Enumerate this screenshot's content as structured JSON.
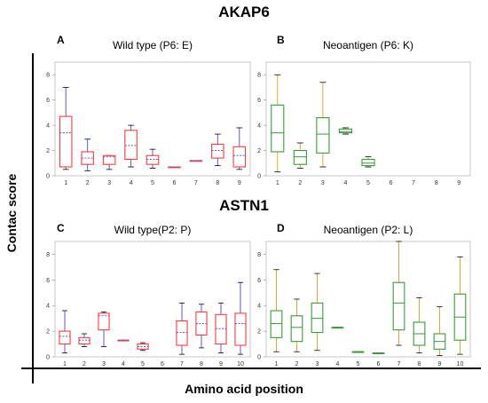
{
  "figure": {
    "section_top_title": "AKAP6",
    "section_bottom_title": "ASTN1",
    "y_axis_title": "Contac score",
    "x_axis_title": "Amino acid position"
  },
  "colors": {
    "wild_box": "#ff3b3b",
    "wild_whisker": "#5b5bd6",
    "neo_box": "#3a9a3a",
    "neo_whisker": "#e0a53a"
  },
  "chart_data": [
    {
      "type": "box",
      "panel": "A",
      "title": "Wild type (P6: E)",
      "ylim": [
        0,
        9
      ],
      "yticks": [
        0,
        2,
        4,
        6,
        8
      ],
      "categories": [
        "1",
        "2",
        "3",
        "4",
        "5",
        "6",
        "7",
        "8",
        "9"
      ],
      "boxes": [
        {
          "min": 0.5,
          "q1": 0.7,
          "median": 3.4,
          "q3": 4.7,
          "max": 7.0
        },
        {
          "min": 0.4,
          "q1": 0.9,
          "median": 1.4,
          "q3": 1.9,
          "max": 2.9
        },
        {
          "min": 0.5,
          "q1": 0.9,
          "median": 1.5,
          "q3": 1.6,
          "max": 1.6
        },
        {
          "min": 0.7,
          "q1": 1.3,
          "median": 2.4,
          "q3": 3.6,
          "max": 4.0
        },
        {
          "min": 0.6,
          "q1": 0.9,
          "median": 1.3,
          "q3": 1.6,
          "max": 2.1
        },
        {
          "min": 0.7,
          "q1": 0.7,
          "median": 0.7,
          "q3": 0.7,
          "max": 0.7
        },
        {
          "min": 1.2,
          "q1": 1.2,
          "median": 1.2,
          "q3": 1.2,
          "max": 1.2
        },
        {
          "min": 0.8,
          "q1": 1.4,
          "median": 2.0,
          "q3": 2.5,
          "max": 3.3
        },
        {
          "min": 0.5,
          "q1": 0.7,
          "median": 1.6,
          "q3": 2.3,
          "max": 3.8
        }
      ]
    },
    {
      "type": "box",
      "panel": "B",
      "title": "Neoantigen (P6: K)",
      "ylim": [
        0,
        9
      ],
      "yticks": [
        0,
        2,
        4,
        6,
        8
      ],
      "categories": [
        "1",
        "2",
        "3",
        "4",
        "5",
        "6",
        "7",
        "8",
        "9"
      ],
      "boxes": [
        {
          "min": 0.3,
          "q1": 1.9,
          "median": 3.4,
          "q3": 5.6,
          "max": 8.0
        },
        {
          "min": 0.6,
          "q1": 0.9,
          "median": 1.5,
          "q3": 2.0,
          "max": 2.6
        },
        {
          "min": 0.7,
          "q1": 1.8,
          "median": 3.3,
          "q3": 4.6,
          "max": 7.4
        },
        {
          "min": 3.3,
          "q1": 3.4,
          "median": 3.5,
          "q3": 3.7,
          "max": 3.8
        },
        {
          "min": 0.7,
          "q1": 0.8,
          "median": 1.0,
          "q3": 1.3,
          "max": 1.5
        },
        null,
        null,
        null,
        null
      ]
    },
    {
      "type": "box",
      "panel": "C",
      "title": "Wild type(P2: P)",
      "ylim": [
        0,
        9
      ],
      "yticks": [
        0,
        2,
        4,
        6,
        8
      ],
      "categories": [
        "1",
        "2",
        "3",
        "4",
        "5",
        "6",
        "7",
        "8",
        "9",
        "10"
      ],
      "boxes": [
        {
          "min": 0.3,
          "q1": 1.0,
          "median": 1.6,
          "q3": 2.0,
          "max": 3.6
        },
        {
          "min": 0.8,
          "q1": 1.0,
          "median": 1.3,
          "q3": 1.5,
          "max": 1.8
        },
        {
          "min": 0.8,
          "q1": 2.1,
          "median": 3.2,
          "q3": 3.4,
          "max": 3.5
        },
        {
          "min": 1.3,
          "q1": 1.3,
          "median": 1.3,
          "q3": 1.3,
          "max": 1.3
        },
        {
          "min": 0.5,
          "q1": 0.6,
          "median": 0.8,
          "q3": 1.0,
          "max": 1.1
        },
        null,
        {
          "min": 0.2,
          "q1": 0.9,
          "median": 1.9,
          "q3": 2.8,
          "max": 4.2
        },
        {
          "min": 0.7,
          "q1": 1.7,
          "median": 2.6,
          "q3": 3.5,
          "max": 4.1
        },
        {
          "min": 0.3,
          "q1": 1.0,
          "median": 2.2,
          "q3": 3.3,
          "max": 4.2
        },
        {
          "min": 0.2,
          "q1": 0.9,
          "median": 2.6,
          "q3": 3.4,
          "max": 5.8
        }
      ]
    },
    {
      "type": "box",
      "panel": "D",
      "title": "Neoantigen (P2: L)",
      "ylim": [
        0,
        9
      ],
      "yticks": [
        0,
        2,
        4,
        6,
        8
      ],
      "categories": [
        "1",
        "2",
        "3",
        "4",
        "5",
        "6",
        "7",
        "8",
        "9",
        "10"
      ],
      "boxes": [
        {
          "min": 0.4,
          "q1": 1.5,
          "median": 2.6,
          "q3": 3.6,
          "max": 6.8
        },
        {
          "min": 0.4,
          "q1": 1.2,
          "median": 2.3,
          "q3": 3.2,
          "max": 4.5
        },
        {
          "min": 0.5,
          "q1": 1.9,
          "median": 3.0,
          "q3": 4.2,
          "max": 6.5
        },
        {
          "min": 2.3,
          "q1": 2.3,
          "median": 2.3,
          "q3": 2.3,
          "max": 2.3
        },
        {
          "min": 0.4,
          "q1": 0.4,
          "median": 0.4,
          "q3": 0.4,
          "max": 0.4
        },
        {
          "min": 0.3,
          "q1": 0.3,
          "median": 0.3,
          "q3": 0.3,
          "max": 0.3
        },
        {
          "min": 0.9,
          "q1": 2.1,
          "median": 4.2,
          "q3": 5.8,
          "max": 9.0
        },
        {
          "min": 0.3,
          "q1": 0.9,
          "median": 1.8,
          "q3": 2.7,
          "max": 4.6
        },
        {
          "min": 0.1,
          "q1": 0.6,
          "median": 1.2,
          "q3": 1.8,
          "max": 3.9
        },
        {
          "min": 0.2,
          "q1": 1.3,
          "median": 3.1,
          "q3": 4.9,
          "max": 7.8
        }
      ]
    }
  ]
}
